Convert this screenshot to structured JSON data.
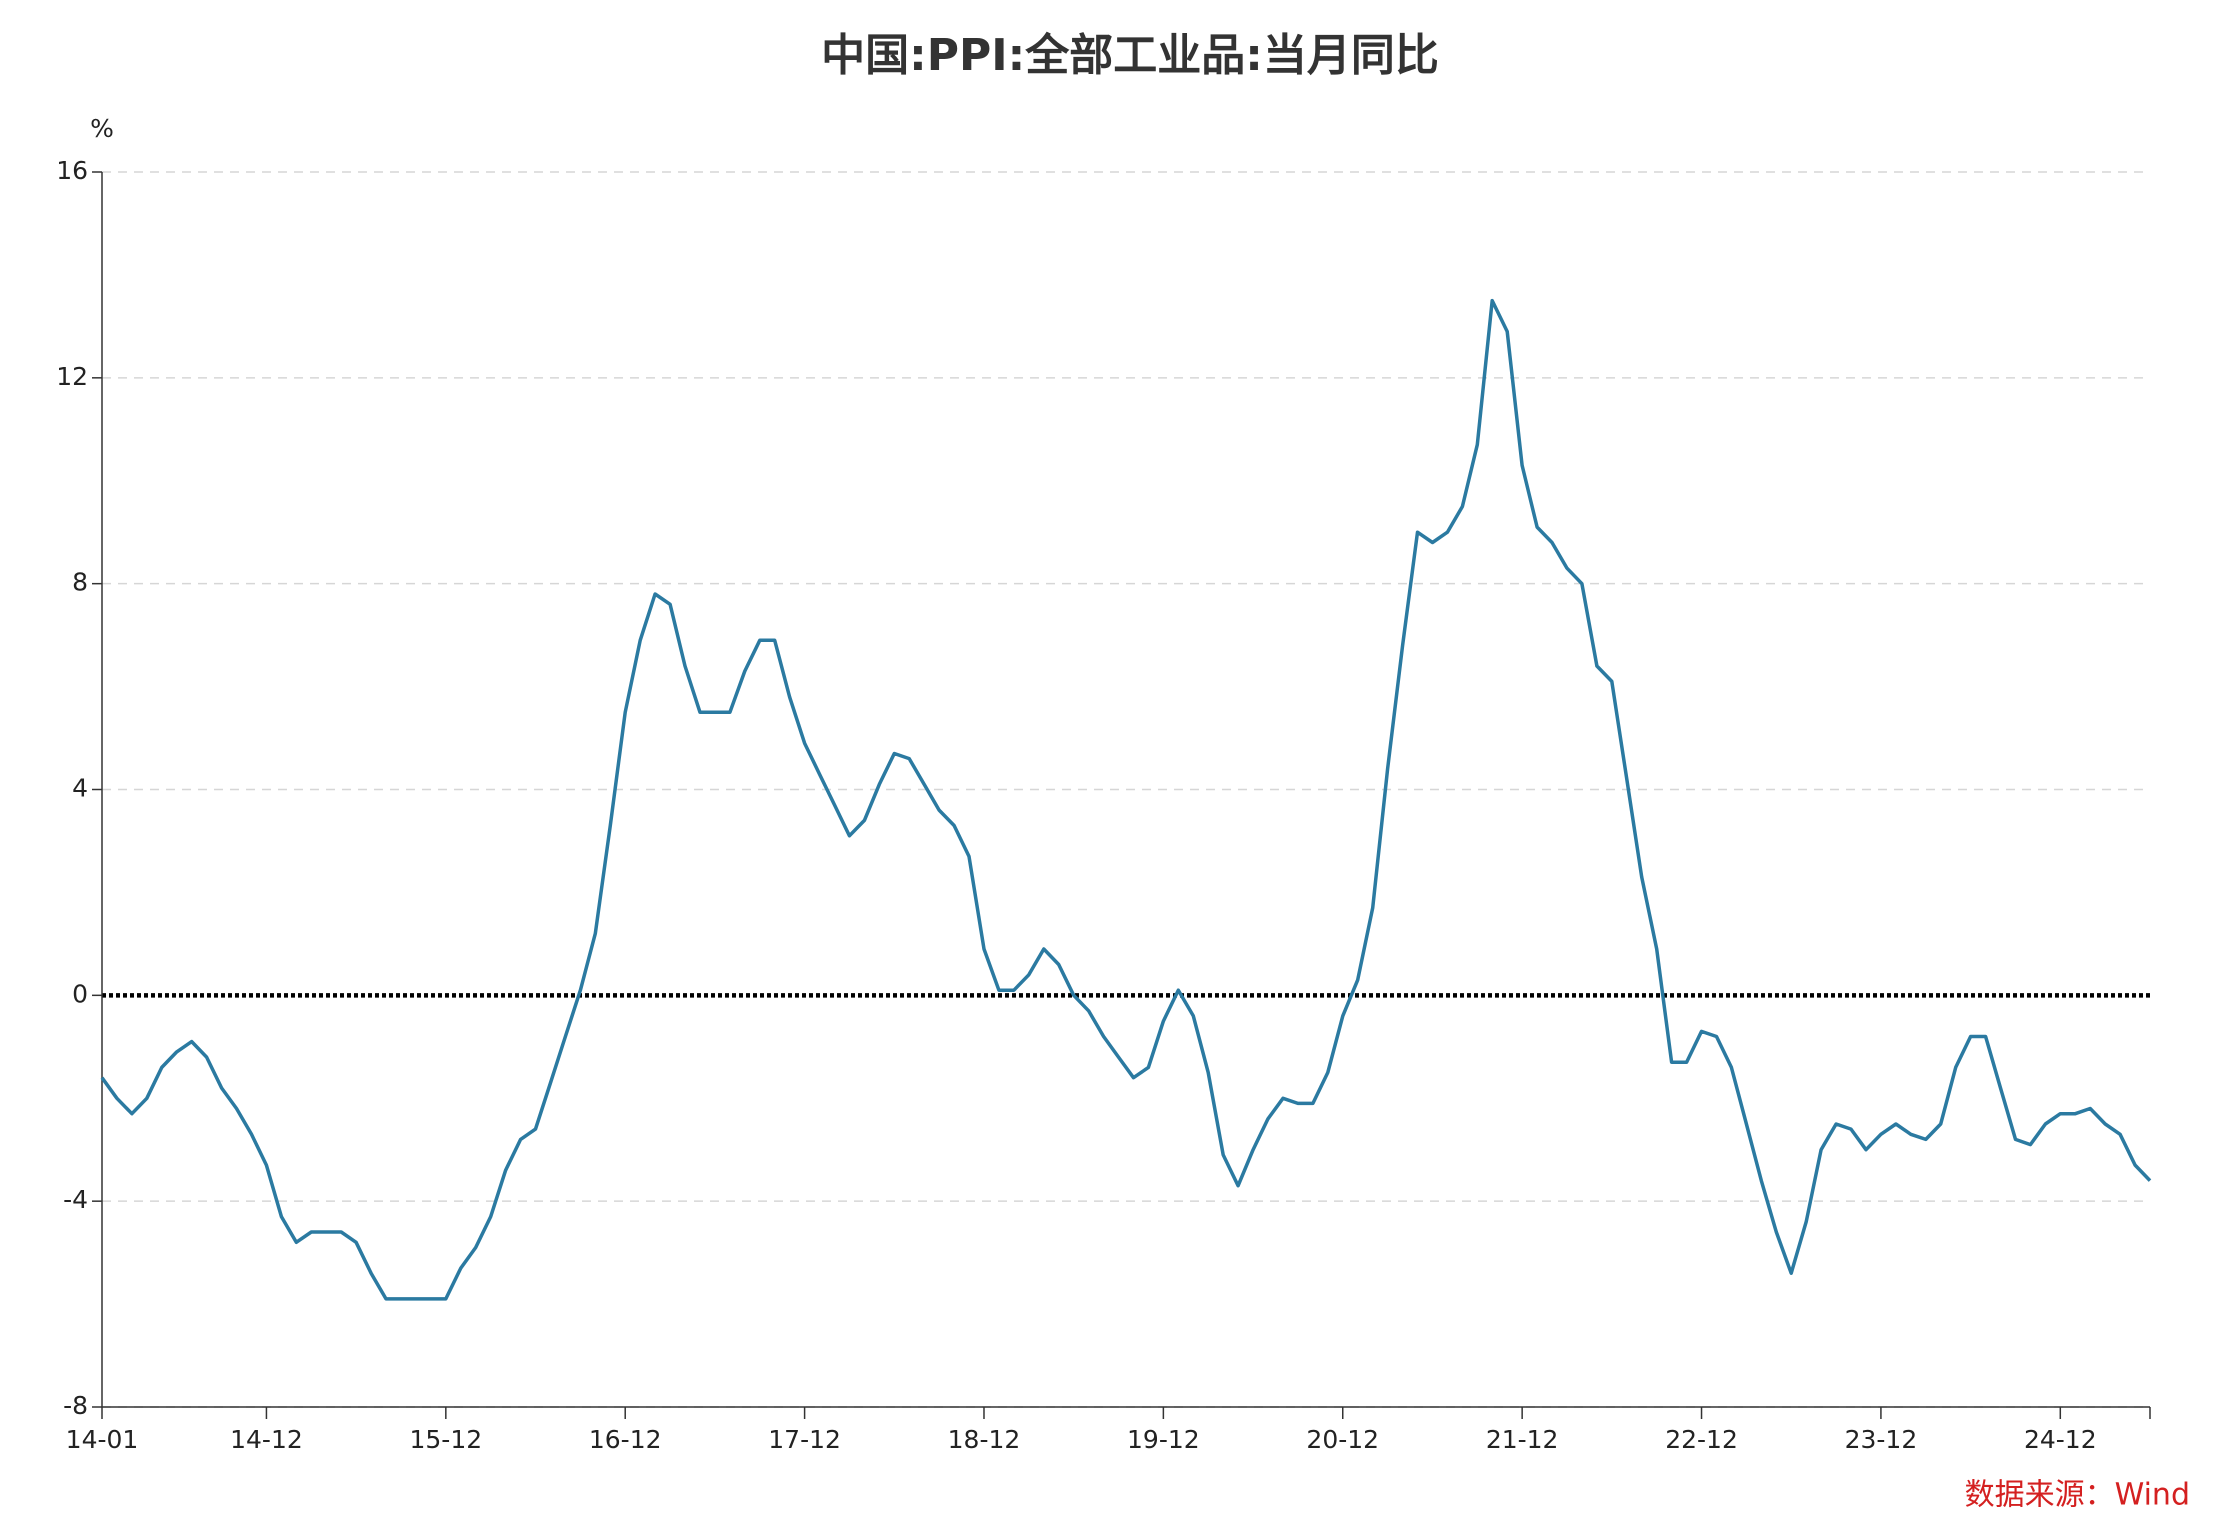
{
  "chart_data": {
    "type": "line",
    "title": "中国:PPI:全部工业品:当月同比",
    "y_unit": "%",
    "source": "数据来源：Wind",
    "categories": [
      "14-01",
      null,
      null,
      null,
      null,
      null,
      null,
      null,
      null,
      null,
      null,
      "14-12",
      null,
      null,
      null,
      null,
      null,
      null,
      null,
      null,
      null,
      null,
      null,
      "15-12",
      null,
      null,
      null,
      null,
      null,
      null,
      null,
      null,
      null,
      null,
      null,
      "16-12",
      null,
      null,
      null,
      null,
      null,
      null,
      null,
      null,
      null,
      null,
      null,
      "17-12",
      null,
      null,
      null,
      null,
      null,
      null,
      null,
      null,
      null,
      null,
      null,
      "18-12",
      null,
      null,
      null,
      null,
      null,
      null,
      null,
      null,
      null,
      null,
      null,
      "19-12",
      null,
      null,
      null,
      null,
      null,
      null,
      null,
      null,
      null,
      null,
      null,
      "20-12",
      null,
      null,
      null,
      null,
      null,
      null,
      null,
      null,
      null,
      null,
      null,
      "21-12",
      null,
      null,
      null,
      null,
      null,
      null,
      null,
      null,
      null,
      null,
      null,
      "22-12",
      null,
      null,
      null,
      null,
      null,
      null,
      null,
      null,
      null,
      null,
      null,
      "23-12",
      null,
      null,
      null,
      null,
      null,
      null,
      null,
      null,
      null,
      null,
      null,
      "24-12",
      null,
      null,
      null,
      null,
      null,
      null
    ],
    "series": [
      {
        "name": "中国:PPI:全部工业品:当月同比",
        "color": "#2b7aa1",
        "values": [
          -1.6,
          -2.0,
          -2.3,
          -2.0,
          -1.4,
          -1.1,
          -0.9,
          -1.2,
          -1.8,
          -2.2,
          -2.7,
          -3.3,
          -4.3,
          -4.8,
          -4.6,
          -4.6,
          -4.6,
          -4.8,
          -5.4,
          -5.9,
          -5.9,
          -5.9,
          -5.9,
          -5.9,
          -5.3,
          -4.9,
          -4.3,
          -3.4,
          -2.8,
          -2.6,
          -1.7,
          -0.8,
          0.1,
          1.2,
          3.3,
          5.5,
          6.9,
          7.8,
          7.6,
          6.4,
          5.5,
          5.5,
          5.5,
          6.3,
          6.9,
          6.9,
          5.8,
          4.9,
          4.3,
          3.7,
          3.1,
          3.4,
          4.1,
          4.7,
          4.6,
          4.1,
          3.6,
          3.3,
          2.7,
          0.9,
          0.1,
          0.1,
          0.4,
          0.9,
          0.6,
          0.0,
          -0.3,
          -0.8,
          -1.2,
          -1.6,
          -1.4,
          -0.5,
          0.1,
          -0.4,
          -1.5,
          -3.1,
          -3.7,
          -3.0,
          -2.4,
          -2.0,
          -2.1,
          -2.1,
          -1.5,
          -0.4,
          0.3,
          1.7,
          4.4,
          6.8,
          9.0,
          8.8,
          9.0,
          9.5,
          10.7,
          13.5,
          12.9,
          10.3,
          9.1,
          8.8,
          8.3,
          8.0,
          6.4,
          6.1,
          4.2,
          2.3,
          0.9,
          -1.3,
          -1.3,
          -0.7,
          -0.8,
          -1.4,
          -2.5,
          -3.6,
          -4.6,
          -5.4,
          -4.4,
          -3.0,
          -2.5,
          -2.6,
          -3.0,
          -2.7,
          -2.5,
          -2.7,
          -2.8,
          -2.5,
          -1.4,
          -0.8,
          -0.8,
          -1.8,
          -2.8,
          -2.9,
          -2.5,
          -2.3,
          -2.3,
          -2.2,
          -2.5,
          -2.7,
          -3.3,
          -3.6
        ]
      }
    ],
    "ylim": [
      -8,
      16
    ],
    "yticks": [
      -8,
      -4,
      0,
      4,
      8,
      12,
      16
    ],
    "grid": true
  }
}
